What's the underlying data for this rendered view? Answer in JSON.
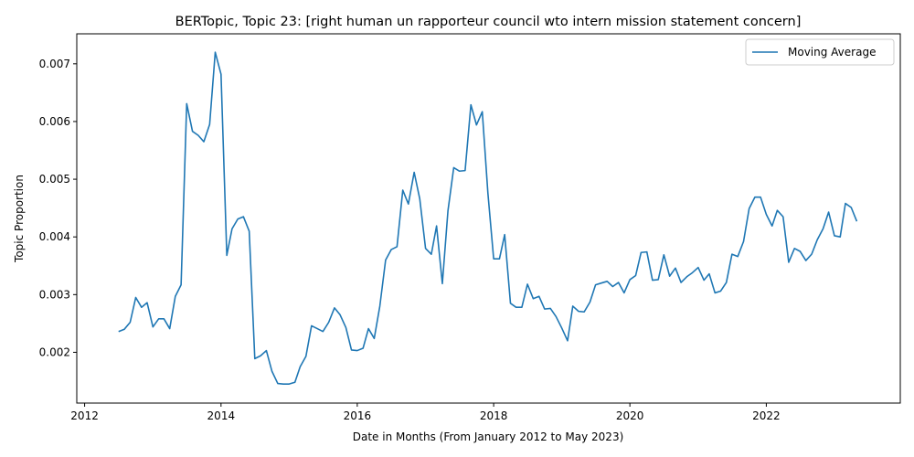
{
  "chart_data": {
    "type": "line",
    "title": "BERTopic, Topic 23: [right human un rapporteur council wto intern mission statement concern]",
    "xlabel": "Date in Months (From January 2012 to May 2023)",
    "ylabel": "Topic Proportion",
    "xlim": [
      "2011-11-20",
      "2023-12-20"
    ],
    "ylim": [
      0.00112,
      0.00752
    ],
    "x_ticks": [
      "2012",
      "2014",
      "2016",
      "2018",
      "2020",
      "2022"
    ],
    "y_ticks": [
      "0.002",
      "0.003",
      "0.004",
      "0.005",
      "0.006",
      "0.007"
    ],
    "grid": false,
    "legend_position": "top-right",
    "series": [
      {
        "name": "Moving Average",
        "color": "#1f77b4",
        "x": [
          "2012-07",
          "2012-08",
          "2012-09",
          "2012-10",
          "2012-11",
          "2012-12",
          "2013-01",
          "2013-02",
          "2013-03",
          "2013-04",
          "2013-05",
          "2013-06",
          "2013-07",
          "2013-08",
          "2013-09",
          "2013-10",
          "2013-11",
          "2013-12",
          "2014-01",
          "2014-02",
          "2014-03",
          "2014-04",
          "2014-05",
          "2014-06",
          "2014-07",
          "2014-08",
          "2014-09",
          "2014-10",
          "2014-11",
          "2014-12",
          "2015-01",
          "2015-02",
          "2015-03",
          "2015-04",
          "2015-05",
          "2015-06",
          "2015-07",
          "2015-08",
          "2015-09",
          "2015-10",
          "2015-11",
          "2015-12",
          "2016-01",
          "2016-02",
          "2016-03",
          "2016-04",
          "2016-05",
          "2016-06",
          "2016-07",
          "2016-08",
          "2016-09",
          "2016-10",
          "2016-11",
          "2016-12",
          "2017-01",
          "2017-02",
          "2017-03",
          "2017-04",
          "2017-05",
          "2017-06",
          "2017-07",
          "2017-08",
          "2017-09",
          "2017-10",
          "2017-11",
          "2017-12",
          "2018-01",
          "2018-02",
          "2018-03",
          "2018-04",
          "2018-05",
          "2018-06",
          "2018-07",
          "2018-08",
          "2018-09",
          "2018-10",
          "2018-11",
          "2018-12",
          "2019-01",
          "2019-02",
          "2019-03",
          "2019-04",
          "2019-05",
          "2019-06",
          "2019-07",
          "2019-08",
          "2019-09",
          "2019-10",
          "2019-11",
          "2019-12",
          "2020-01",
          "2020-02",
          "2020-03",
          "2020-04",
          "2020-05",
          "2020-06",
          "2020-07",
          "2020-08",
          "2020-09",
          "2020-10",
          "2020-11",
          "2020-12",
          "2021-01",
          "2021-02",
          "2021-03",
          "2021-04",
          "2021-05",
          "2021-06",
          "2021-07",
          "2021-08",
          "2021-09",
          "2021-10",
          "2021-11",
          "2021-12",
          "2022-01",
          "2022-02",
          "2022-03",
          "2022-04",
          "2022-05",
          "2022-06",
          "2022-07",
          "2022-08",
          "2022-09",
          "2022-10",
          "2022-11",
          "2022-12",
          "2023-01",
          "2023-02",
          "2023-03",
          "2023-04",
          "2023-05"
        ],
        "values": [
          0.00236,
          0.0024,
          0.00252,
          0.00295,
          0.00278,
          0.00286,
          0.00244,
          0.00258,
          0.00258,
          0.00241,
          0.00297,
          0.00317,
          0.00631,
          0.00583,
          0.00576,
          0.00565,
          0.00595,
          0.0072,
          0.00682,
          0.00368,
          0.00414,
          0.00431,
          0.00435,
          0.0041,
          0.00189,
          0.00194,
          0.00203,
          0.00167,
          0.00146,
          0.00145,
          0.00145,
          0.00148,
          0.00175,
          0.00193,
          0.00246,
          0.00241,
          0.00236,
          0.00252,
          0.00277,
          0.00265,
          0.00243,
          0.00204,
          0.00203,
          0.00207,
          0.00241,
          0.00224,
          0.0028,
          0.0036,
          0.00378,
          0.00383,
          0.00481,
          0.00457,
          0.00512,
          0.00466,
          0.0038,
          0.0037,
          0.00419,
          0.00319,
          0.00445,
          0.0052,
          0.00514,
          0.00515,
          0.00629,
          0.00594,
          0.00617,
          0.00476,
          0.00362,
          0.00362,
          0.00404,
          0.00285,
          0.00278,
          0.00278,
          0.00318,
          0.00293,
          0.00297,
          0.00275,
          0.00276,
          0.00262,
          0.00242,
          0.0022,
          0.0028,
          0.00271,
          0.0027,
          0.00287,
          0.00317,
          0.0032,
          0.00323,
          0.00314,
          0.00321,
          0.00303,
          0.00326,
          0.00333,
          0.00373,
          0.00374,
          0.00325,
          0.00326,
          0.00369,
          0.00332,
          0.00346,
          0.00321,
          0.00331,
          0.00338,
          0.00347,
          0.00325,
          0.00336,
          0.00303,
          0.00306,
          0.00321,
          0.0037,
          0.00366,
          0.00392,
          0.00449,
          0.00469,
          0.00469,
          0.00439,
          0.00419,
          0.00446,
          0.00435,
          0.00356,
          0.0038,
          0.00375,
          0.00359,
          0.0037,
          0.00395,
          0.00414,
          0.00443,
          0.00402,
          0.004,
          0.00458,
          0.00451,
          0.00427
        ]
      }
    ]
  }
}
